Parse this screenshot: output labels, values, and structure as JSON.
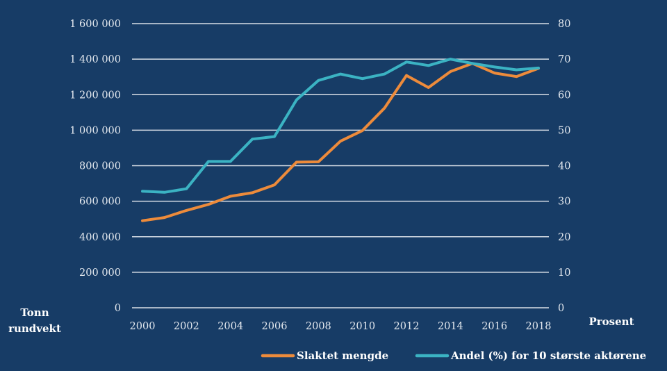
{
  "chart_data": {
    "type": "line",
    "title": "",
    "x": [
      2000,
      2001,
      2002,
      2003,
      2004,
      2005,
      2006,
      2007,
      2008,
      2009,
      2010,
      2011,
      2012,
      2013,
      2014,
      2015,
      2016,
      2017,
      2018
    ],
    "xticks": [
      "2000",
      "2002",
      "2004",
      "2006",
      "2008",
      "2010",
      "2012",
      "2014",
      "2016",
      "2018"
    ],
    "xlabel": "",
    "ylabel_left": [
      "Tonn",
      "rundvekt"
    ],
    "ylabel_right": "Prosent",
    "ylim_left": [
      0,
      1600000
    ],
    "ylim_right": [
      0,
      80
    ],
    "yticks_left": [
      "0",
      "200 000",
      "400 000",
      "600 000",
      "800 000",
      "1 000 000",
      "1 200 000",
      "1 400 000",
      "1 600 000"
    ],
    "yticks_right": [
      "0",
      "10",
      "20",
      "30",
      "40",
      "50",
      "60",
      "70",
      "80"
    ],
    "grid": true,
    "legend_position": "bottom-right",
    "series": [
      {
        "name": "Slaktet mengde",
        "axis": "left",
        "color": "#ed8b3b",
        "values": [
          490000,
          508000,
          548000,
          582000,
          628000,
          648000,
          692000,
          820000,
          822000,
          938000,
          998000,
          1124000,
          1308000,
          1240000,
          1330000,
          1376000,
          1322000,
          1302000,
          1348000
        ]
      },
      {
        "name": "Andel (%) for 10 største aktørene",
        "axis": "right",
        "color": "#3bb3c3",
        "values": [
          32.8,
          32.5,
          33.5,
          41.2,
          41.2,
          47.5,
          48.2,
          58.5,
          64.0,
          65.8,
          64.5,
          65.8,
          69.2,
          68.2,
          70.0,
          68.8,
          67.8,
          67.0,
          67.5
        ]
      }
    ]
  }
}
